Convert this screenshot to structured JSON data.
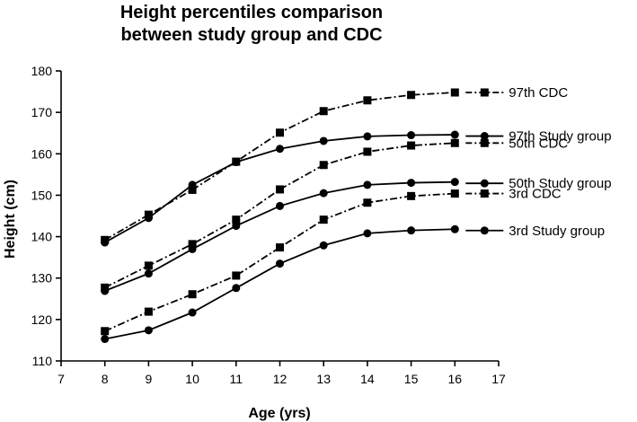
{
  "chart_data": {
    "type": "line",
    "title_lines": [
      "Height percentiles comparison",
      "between study group and CDC"
    ],
    "xlabel": "Age (yrs)",
    "ylabel": "Height (cm)",
    "xlim": [
      7,
      17
    ],
    "ylim": [
      110,
      180
    ],
    "x_ticks": [
      7,
      8,
      9,
      10,
      11,
      12,
      13,
      14,
      15,
      16,
      17
    ],
    "y_ticks": [
      110,
      120,
      130,
      140,
      150,
      160,
      170,
      180
    ],
    "grid": false,
    "legend_placement": "right, labels at series ends",
    "x": [
      8,
      9,
      10,
      11,
      12,
      13,
      14,
      15,
      16
    ],
    "series": [
      {
        "name": "97th CDC",
        "marker": "square",
        "line": "dash-dot",
        "values": [
          139.2,
          145.3,
          151.3,
          158.1,
          165.1,
          170.3,
          172.9,
          174.2,
          174.8
        ]
      },
      {
        "name": "97th Study group",
        "marker": "circle",
        "line": "solid",
        "values": [
          138.6,
          144.5,
          152.5,
          158.0,
          161.2,
          163.1,
          164.2,
          164.5,
          164.6
        ]
      },
      {
        "name": "50th CDC",
        "marker": "square",
        "line": "dash-dot",
        "values": [
          127.7,
          133.0,
          138.2,
          144.1,
          151.4,
          157.3,
          160.5,
          162.0,
          162.6
        ]
      },
      {
        "name": "50th Study group",
        "marker": "circle",
        "line": "solid",
        "values": [
          126.9,
          131.1,
          137.0,
          142.6,
          147.4,
          150.5,
          152.5,
          153.0,
          153.2
        ]
      },
      {
        "name": "3rd CDC",
        "marker": "square",
        "line": "dash-dot",
        "values": [
          117.2,
          121.9,
          126.1,
          130.6,
          137.4,
          144.1,
          148.2,
          149.8,
          150.4
        ]
      },
      {
        "name": "3rd Study group",
        "marker": "circle",
        "line": "solid",
        "values": [
          115.3,
          117.4,
          121.7,
          127.6,
          133.5,
          137.9,
          140.8,
          141.5,
          141.8
        ]
      }
    ]
  }
}
